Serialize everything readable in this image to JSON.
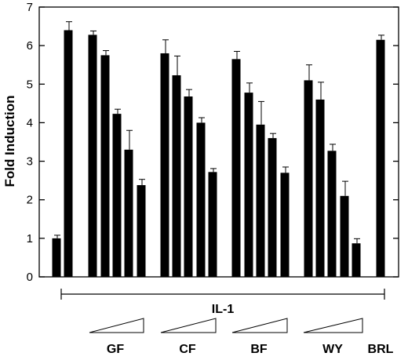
{
  "chart_data": {
    "type": "bar",
    "title": "",
    "xlabel": "",
    "ylabel": "Fold Induction",
    "ylim": [
      0,
      7
    ],
    "yticks": [
      0,
      1,
      2,
      3,
      4,
      5,
      6,
      7
    ],
    "grid": false,
    "legend": "none",
    "bar_color": "#000000",
    "bars": [
      {
        "group": "",
        "value": 1.0,
        "error": 0.08
      },
      {
        "group": "",
        "value": 6.4,
        "error": 0.22
      },
      {
        "group": "GF",
        "value": 6.28,
        "error": 0.1
      },
      {
        "group": "GF",
        "value": 5.75,
        "error": 0.12
      },
      {
        "group": "GF",
        "value": 4.23,
        "error": 0.12
      },
      {
        "group": "GF",
        "value": 3.3,
        "error": 0.5
      },
      {
        "group": "GF",
        "value": 2.38,
        "error": 0.15
      },
      {
        "group": "CF",
        "value": 5.8,
        "error": 0.35
      },
      {
        "group": "CF",
        "value": 5.23,
        "error": 0.5
      },
      {
        "group": "CF",
        "value": 4.68,
        "error": 0.18
      },
      {
        "group": "CF",
        "value": 4.0,
        "error": 0.13
      },
      {
        "group": "CF",
        "value": 2.72,
        "error": 0.09
      },
      {
        "group": "BF",
        "value": 5.65,
        "error": 0.2
      },
      {
        "group": "BF",
        "value": 4.78,
        "error": 0.25
      },
      {
        "group": "BF",
        "value": 3.95,
        "error": 0.6
      },
      {
        "group": "BF",
        "value": 3.6,
        "error": 0.12
      },
      {
        "group": "BF",
        "value": 2.7,
        "error": 0.15
      },
      {
        "group": "WY",
        "value": 5.1,
        "error": 0.4
      },
      {
        "group": "WY",
        "value": 4.6,
        "error": 0.45
      },
      {
        "group": "WY",
        "value": 3.27,
        "error": 0.17
      },
      {
        "group": "WY",
        "value": 2.1,
        "error": 0.38
      },
      {
        "group": "WY",
        "value": 0.87,
        "error": 0.12
      },
      {
        "group": "BRL",
        "value": 6.15,
        "error": 0.12
      }
    ],
    "bracket_label": "IL-1",
    "group_labels": [
      "GF",
      "CF",
      "BF",
      "WY",
      "BRL"
    ]
  }
}
